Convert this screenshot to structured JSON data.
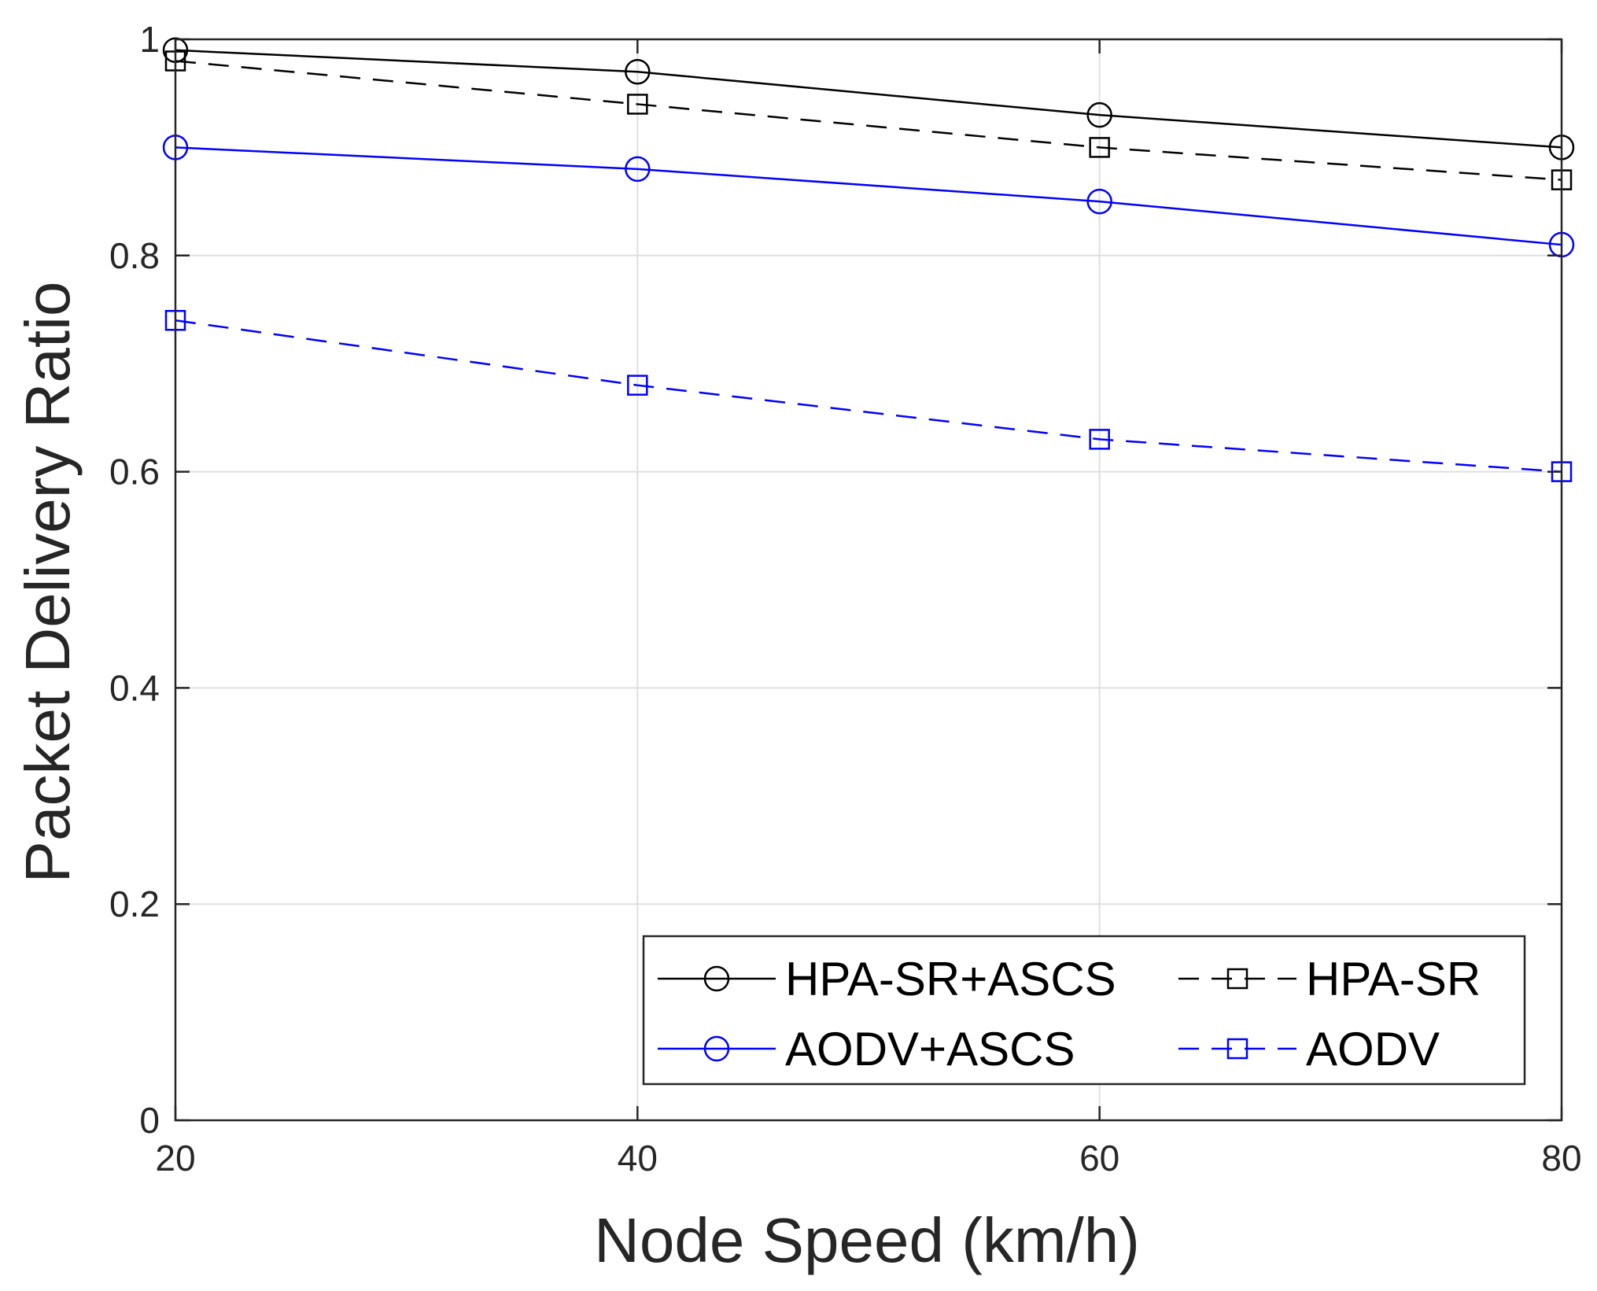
{
  "chart_data": {
    "type": "line",
    "title": "",
    "xlabel": "Node Speed (km/h)",
    "ylabel": "Packet Delivery Ratio",
    "x": [
      20,
      40,
      60,
      80
    ],
    "xlim": [
      20,
      80
    ],
    "ylim": [
      0,
      1
    ],
    "xticks": [
      20,
      40,
      60,
      80
    ],
    "xtick_labels": [
      "20",
      "40",
      "60",
      "80"
    ],
    "yticks": [
      0,
      0.2,
      0.4,
      0.6,
      0.8,
      1
    ],
    "ytick_labels": [
      "0",
      "0.2",
      "0.4",
      "0.6",
      "0.8",
      "1"
    ],
    "grid": true,
    "legend_position": "bottom-right",
    "legend_columns": 2,
    "series": [
      {
        "name": "HPA-SR+ASCS",
        "values": [
          0.99,
          0.97,
          0.93,
          0.9
        ],
        "color": "#000000",
        "line_style": "solid",
        "marker": "circle"
      },
      {
        "name": "HPA-SR",
        "values": [
          0.98,
          0.94,
          0.9,
          0.87
        ],
        "color": "#000000",
        "line_style": "dashed",
        "marker": "square"
      },
      {
        "name": "AODV+ASCS",
        "values": [
          0.9,
          0.88,
          0.85,
          0.81
        ],
        "color": "#0000ff",
        "line_style": "solid",
        "marker": "circle"
      },
      {
        "name": "AODV",
        "values": [
          0.74,
          0.68,
          0.63,
          0.6
        ],
        "color": "#0000ff",
        "line_style": "dashed",
        "marker": "square"
      }
    ]
  }
}
